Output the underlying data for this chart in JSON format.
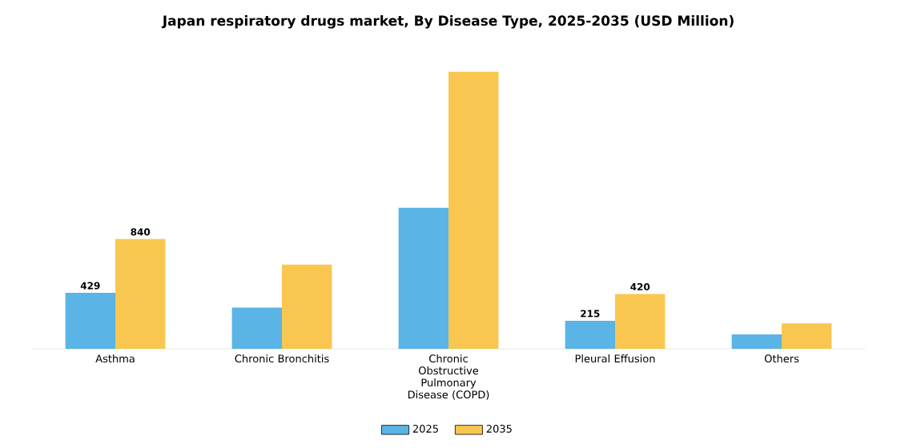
{
  "chart_data": {
    "type": "bar",
    "title": "Japan respiratory drugs market, By Disease Type, 2025-2035 (USD Million)",
    "categories": [
      "Asthma",
      "Chronic Bronchitis",
      "Chronic Obstructive Pulmonary Disease (COPD)",
      "Pleural Effusion",
      "Others"
    ],
    "series": [
      {
        "name": "2025",
        "color": "#5ab4e5",
        "values": [
          429,
          315,
          1080,
          215,
          110
        ],
        "value_labels": [
          "429",
          null,
          null,
          "215",
          null
        ]
      },
      {
        "name": "2035",
        "color": "#f9c74f",
        "values": [
          840,
          645,
          2120,
          420,
          195
        ],
        "value_labels": [
          "840",
          null,
          null,
          "420",
          null
        ]
      }
    ],
    "legend": "bottom"
  }
}
